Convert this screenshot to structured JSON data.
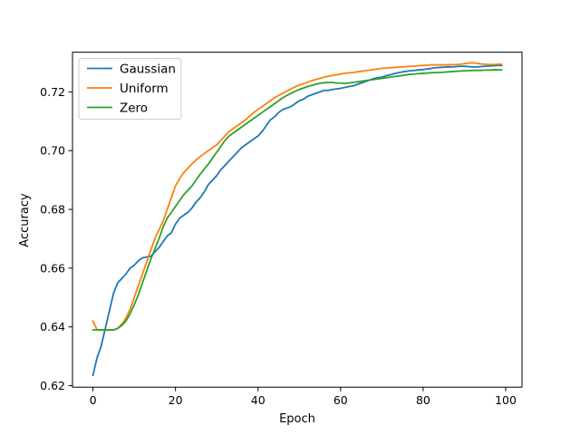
{
  "chart_data": {
    "type": "line",
    "title": "",
    "xlabel": "Epoch",
    "ylabel": "Accuracy",
    "xlim": [
      -4.95,
      103.95
    ],
    "ylim": [
      0.6195,
      0.7335
    ],
    "xticks": [
      0,
      20,
      40,
      60,
      80,
      100
    ],
    "xtick_labels": [
      "0",
      "20",
      "40",
      "60",
      "80",
      "100"
    ],
    "yticks": [
      0.62,
      0.64,
      0.66,
      0.68,
      0.7,
      0.72
    ],
    "ytick_labels": [
      "0.62",
      "0.64",
      "0.66",
      "0.68",
      "0.70",
      "0.72"
    ],
    "grid": false,
    "legend": {
      "placement": "top-left"
    },
    "series": [
      {
        "name": "Gaussian",
        "color": "#1f77b4",
        "x": [
          0,
          1,
          2,
          3,
          4,
          5,
          6,
          7,
          8,
          9,
          10,
          11,
          12,
          13,
          14,
          15,
          16,
          17,
          18,
          19,
          20,
          21,
          22,
          23,
          24,
          25,
          26,
          27,
          28,
          29,
          30,
          31,
          32,
          33,
          34,
          35,
          36,
          37,
          38,
          39,
          40,
          41,
          42,
          43,
          44,
          45,
          46,
          47,
          48,
          49,
          50,
          51,
          52,
          53,
          54,
          55,
          56,
          57,
          58,
          59,
          60,
          61,
          62,
          63,
          64,
          65,
          66,
          67,
          68,
          69,
          70,
          71,
          72,
          73,
          74,
          75,
          76,
          77,
          78,
          79,
          80,
          81,
          82,
          83,
          84,
          85,
          86,
          87,
          88,
          89,
          90,
          91,
          92,
          93,
          94,
          95,
          96,
          97,
          98,
          99
        ],
        "y": [
          0.6235,
          0.6295,
          0.6335,
          0.6395,
          0.6455,
          0.6515,
          0.655,
          0.6565,
          0.658,
          0.66,
          0.661,
          0.6625,
          0.6635,
          0.6638,
          0.664,
          0.6655,
          0.667,
          0.669,
          0.671,
          0.672,
          0.675,
          0.677,
          0.678,
          0.679,
          0.6805,
          0.6825,
          0.684,
          0.686,
          0.6885,
          0.69,
          0.6915,
          0.6935,
          0.695,
          0.6965,
          0.698,
          0.6995,
          0.701,
          0.702,
          0.703,
          0.704,
          0.705,
          0.7065,
          0.7085,
          0.7105,
          0.7115,
          0.713,
          0.714,
          0.7145,
          0.715,
          0.716,
          0.717,
          0.7175,
          0.7185,
          0.719,
          0.7195,
          0.72,
          0.7205,
          0.7205,
          0.7208,
          0.721,
          0.7212,
          0.7215,
          0.7218,
          0.722,
          0.7225,
          0.723,
          0.7235,
          0.724,
          0.7245,
          0.7248,
          0.725,
          0.7255,
          0.7258,
          0.7262,
          0.7265,
          0.7268,
          0.727,
          0.7272,
          0.7273,
          0.7275,
          0.7276,
          0.7278,
          0.728,
          0.7282,
          0.7283,
          0.7284,
          0.7285,
          0.7285,
          0.7286,
          0.7287,
          0.7287,
          0.7286,
          0.7285,
          0.7285,
          0.7286,
          0.7287,
          0.7288,
          0.7289,
          0.729,
          0.729
        ]
      },
      {
        "name": "Uniform",
        "color": "#ff7f0e",
        "x": [
          0,
          1,
          2,
          3,
          4,
          5,
          6,
          7,
          8,
          9,
          10,
          11,
          12,
          13,
          14,
          15,
          16,
          17,
          18,
          19,
          20,
          21,
          22,
          23,
          24,
          25,
          26,
          27,
          28,
          29,
          30,
          31,
          32,
          33,
          34,
          35,
          36,
          37,
          38,
          39,
          40,
          41,
          42,
          43,
          44,
          45,
          46,
          47,
          48,
          49,
          50,
          51,
          52,
          53,
          54,
          55,
          56,
          57,
          58,
          59,
          60,
          61,
          62,
          63,
          64,
          65,
          66,
          67,
          68,
          69,
          70,
          71,
          72,
          73,
          74,
          75,
          76,
          77,
          78,
          79,
          80,
          81,
          82,
          83,
          84,
          85,
          86,
          87,
          88,
          89,
          90,
          91,
          92,
          93,
          94,
          95,
          96,
          97,
          98,
          99
        ],
        "y": [
          0.642,
          0.639,
          0.639,
          0.639,
          0.639,
          0.639,
          0.6395,
          0.641,
          0.643,
          0.646,
          0.65,
          0.654,
          0.658,
          0.662,
          0.666,
          0.67,
          0.673,
          0.676,
          0.68,
          0.684,
          0.688,
          0.6905,
          0.6925,
          0.694,
          0.6955,
          0.6968,
          0.698,
          0.699,
          0.7,
          0.701,
          0.702,
          0.7035,
          0.705,
          0.7065,
          0.7075,
          0.7085,
          0.7095,
          0.7105,
          0.7118,
          0.713,
          0.714,
          0.715,
          0.716,
          0.717,
          0.718,
          0.7188,
          0.7195,
          0.7203,
          0.721,
          0.7217,
          0.7223,
          0.7228,
          0.7233,
          0.7238,
          0.7242,
          0.7246,
          0.725,
          0.7253,
          0.7256,
          0.7258,
          0.7261,
          0.7263,
          0.7265,
          0.7266,
          0.7268,
          0.727,
          0.7272,
          0.7274,
          0.7276,
          0.7278,
          0.728,
          0.7281,
          0.7282,
          0.7283,
          0.7284,
          0.7285,
          0.7286,
          0.7287,
          0.7288,
          0.7289,
          0.729,
          0.7291,
          0.7292,
          0.7292,
          0.7292,
          0.7292,
          0.7292,
          0.7293,
          0.7293,
          0.7294,
          0.7296,
          0.7298,
          0.7299,
          0.7297,
          0.7295,
          0.7294,
          0.7293,
          0.7293,
          0.7294,
          0.7294
        ]
      },
      {
        "name": "Zero",
        "color": "#2ca02c",
        "x": [
          0,
          1,
          2,
          3,
          4,
          5,
          6,
          7,
          8,
          9,
          10,
          11,
          12,
          13,
          14,
          15,
          16,
          17,
          18,
          19,
          20,
          21,
          22,
          23,
          24,
          25,
          26,
          27,
          28,
          29,
          30,
          31,
          32,
          33,
          34,
          35,
          36,
          37,
          38,
          39,
          40,
          41,
          42,
          43,
          44,
          45,
          46,
          47,
          48,
          49,
          50,
          51,
          52,
          53,
          54,
          55,
          56,
          57,
          58,
          59,
          60,
          61,
          62,
          63,
          64,
          65,
          66,
          67,
          68,
          69,
          70,
          71,
          72,
          73,
          74,
          75,
          76,
          77,
          78,
          79,
          80,
          81,
          82,
          83,
          84,
          85,
          86,
          87,
          88,
          89,
          90,
          91,
          92,
          93,
          94,
          95,
          96,
          97,
          98,
          99
        ],
        "y": [
          0.639,
          0.639,
          0.639,
          0.639,
          0.639,
          0.639,
          0.6395,
          0.6405,
          0.642,
          0.6445,
          0.6475,
          0.651,
          0.655,
          0.659,
          0.663,
          0.6665,
          0.67,
          0.674,
          0.677,
          0.679,
          0.681,
          0.683,
          0.685,
          0.6865,
          0.688,
          0.69,
          0.692,
          0.6938,
          0.6955,
          0.6975,
          0.6995,
          0.7015,
          0.7035,
          0.705,
          0.706,
          0.707,
          0.708,
          0.709,
          0.71,
          0.711,
          0.712,
          0.713,
          0.714,
          0.715,
          0.716,
          0.717,
          0.718,
          0.7188,
          0.7195,
          0.7202,
          0.7208,
          0.7213,
          0.7218,
          0.7222,
          0.7226,
          0.7229,
          0.7231,
          0.7232,
          0.7232,
          0.723,
          0.723,
          0.7229,
          0.723,
          0.7232,
          0.7234,
          0.7236,
          0.7238,
          0.724,
          0.7242,
          0.7244,
          0.7246,
          0.7248,
          0.725,
          0.7252,
          0.7254,
          0.7256,
          0.7258,
          0.726,
          0.7261,
          0.7262,
          0.7263,
          0.7264,
          0.7265,
          0.7266,
          0.7266,
          0.7267,
          0.7268,
          0.7269,
          0.727,
          0.7271,
          0.7272,
          0.7272,
          0.7273,
          0.7273,
          0.7273,
          0.7274,
          0.7274,
          0.7275,
          0.7275,
          0.7275
        ]
      }
    ]
  }
}
